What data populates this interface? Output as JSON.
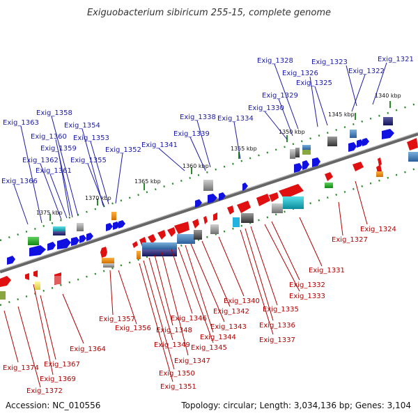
{
  "title": "Exiguobacterium sibiricum 255-15, complete genome",
  "accession": "Accession: NC_010556",
  "summary": "Topology: circular; Length: 3,034,136 bp; Genes: 3,104",
  "colors": {
    "forward_gene": "#1010e0",
    "reverse_gene": "#e01010",
    "forward_label": "#1a1aa8",
    "reverse_label": "#b00000",
    "backbone": "#777777",
    "tick": "#2a8a2a"
  },
  "kbp_labels": [
    "1340 kbp",
    "1345 kbp",
    "1350 kbp",
    "1355 kbp",
    "1360 kbp",
    "1365 kbp",
    "1370 kbp",
    "1375 kbp"
  ],
  "forward_labels": [
    "Exig_1321",
    "Exig_1322",
    "Exig_1323",
    "Exig_1325",
    "Exig_1326",
    "Exig_1328",
    "Exig_1329",
    "Exig_1330",
    "Exig_1334",
    "Exig_1338",
    "Exig_1339",
    "Exig_1341",
    "Exig_1352",
    "Exig_1353",
    "Exig_1354",
    "Exig_1355",
    "Exig_1358",
    "Exig_1359",
    "Exig_1360",
    "Exig_1361",
    "Exig_1362",
    "Exig_1363",
    "Exig_1366"
  ],
  "reverse_labels": [
    "Exig_1324",
    "Exig_1327",
    "Exig_1331",
    "Exig_1332",
    "Exig_1333",
    "Exig_1335",
    "Exig_1336",
    "Exig_1337",
    "Exig_1340",
    "Exig_1342",
    "Exig_1343",
    "Exig_1344",
    "Exig_1345",
    "Exig_1346",
    "Exig_1347",
    "Exig_1348",
    "Exig_1349",
    "Exig_1350",
    "Exig_1351",
    "Exig_1356",
    "Exig_1357",
    "Exig_1364",
    "Exig_1367",
    "Exig_1369",
    "Exig_1372",
    "Exig_1374"
  ]
}
